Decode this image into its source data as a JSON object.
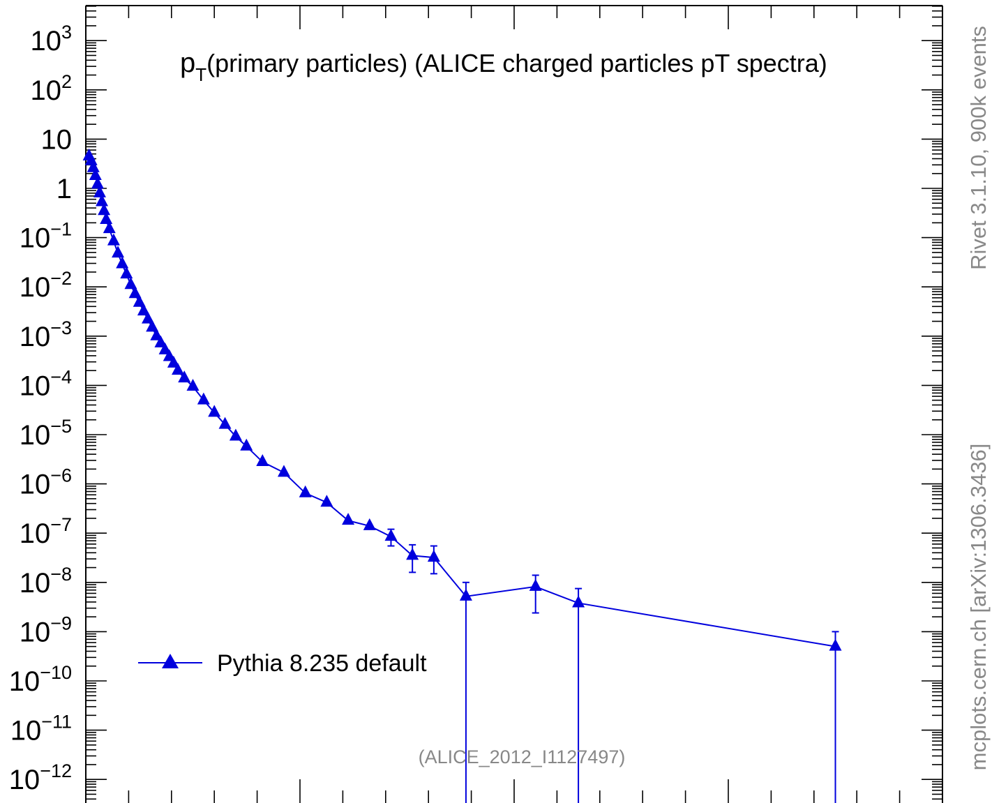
{
  "chart_data": {
    "type": "scatter",
    "title_main": "p",
    "title_sub": "T",
    "title_rest": "(primary particles) (ALICE charged particles pT spectra)",
    "y_scale": "log",
    "ylim_exp": [
      -12.9,
      4.0
    ],
    "xlim": [
      0,
      40
    ],
    "y_ticks": [
      {
        "base": "10",
        "exp": "3",
        "value_exp": 3
      },
      {
        "base": "10",
        "exp": "2",
        "value_exp": 2
      },
      {
        "base": "10",
        "exp": "",
        "value_exp": 1
      },
      {
        "base": "1",
        "exp": "",
        "value_exp": 0
      },
      {
        "base": "10",
        "exp": "−1",
        "value_exp": -1
      },
      {
        "base": "10",
        "exp": "−2",
        "value_exp": -2
      },
      {
        "base": "10",
        "exp": "−3",
        "value_exp": -3
      },
      {
        "base": "10",
        "exp": "−4",
        "value_exp": -4
      },
      {
        "base": "10",
        "exp": "−5",
        "value_exp": -5
      },
      {
        "base": "10",
        "exp": "−6",
        "value_exp": -6
      },
      {
        "base": "10",
        "exp": "−7",
        "value_exp": -7
      },
      {
        "base": "10",
        "exp": "−8",
        "value_exp": -8
      },
      {
        "base": "10",
        "exp": "−9",
        "value_exp": -9
      },
      {
        "base": "10",
        "exp": "−10",
        "value_exp": -10
      },
      {
        "base": "10",
        "exp": "−11",
        "value_exp": -11
      },
      {
        "base": "10",
        "exp": "−12",
        "value_exp": -12
      }
    ],
    "series": [
      {
        "name": "Pythia 8.235 default",
        "color": "#0000dd",
        "marker": "triangle-up",
        "points": [
          {
            "x": 0.15,
            "y": 4.5
          },
          {
            "x": 0.25,
            "y": 3.6
          },
          {
            "x": 0.35,
            "y": 2.6
          },
          {
            "x": 0.45,
            "y": 1.8
          },
          {
            "x": 0.55,
            "y": 1.2
          },
          {
            "x": 0.65,
            "y": 0.8
          },
          {
            "x": 0.75,
            "y": 0.53
          },
          {
            "x": 0.85,
            "y": 0.35
          },
          {
            "x": 0.95,
            "y": 0.23
          },
          {
            "x": 1.1,
            "y": 0.15
          },
          {
            "x": 1.3,
            "y": 0.085
          },
          {
            "x": 1.5,
            "y": 0.048
          },
          {
            "x": 1.7,
            "y": 0.029
          },
          {
            "x": 1.9,
            "y": 0.018
          },
          {
            "x": 2.1,
            "y": 0.011
          },
          {
            "x": 2.3,
            "y": 0.0072
          },
          {
            "x": 2.5,
            "y": 0.0048
          },
          {
            "x": 2.7,
            "y": 0.0032
          },
          {
            "x": 2.9,
            "y": 0.0022
          },
          {
            "x": 3.1,
            "y": 0.0015
          },
          {
            "x": 3.3,
            "y": 0.001
          },
          {
            "x": 3.5,
            "y": 0.00072
          },
          {
            "x": 3.7,
            "y": 0.00052
          },
          {
            "x": 3.9,
            "y": 0.00038
          },
          {
            "x": 4.1,
            "y": 0.00028
          },
          {
            "x": 4.3,
            "y": 0.0002
          },
          {
            "x": 4.6,
            "y": 0.00014
          },
          {
            "x": 5.0,
            "y": 9.5e-05
          },
          {
            "x": 5.5,
            "y": 5e-05
          },
          {
            "x": 6.0,
            "y": 2.8e-05
          },
          {
            "x": 6.5,
            "y": 1.6e-05
          },
          {
            "x": 7.0,
            "y": 9.2e-06
          },
          {
            "x": 7.5,
            "y": 5.8e-06
          },
          {
            "x": 8.25,
            "y": 2.8e-06
          },
          {
            "x": 9.25,
            "y": 1.7e-06
          },
          {
            "x": 10.25,
            "y": 6.5e-07
          },
          {
            "x": 11.25,
            "y": 4.2e-07
          },
          {
            "x": 12.25,
            "y": 1.8e-07
          },
          {
            "x": 13.25,
            "y": 1.4e-07
          },
          {
            "x": 14.25,
            "y": 8.5e-08,
            "yerr_lo": 5.5e-08,
            "yerr_hi": 1.2e-07
          },
          {
            "x": 15.25,
            "y": 3.5e-08,
            "yerr_lo": 1.6e-08,
            "yerr_hi": 5.8e-08
          },
          {
            "x": 16.25,
            "y": 3.2e-08,
            "yerr_lo": 1.5e-08,
            "yerr_hi": 5.5e-08
          },
          {
            "x": 17.75,
            "y": 5.2e-09,
            "yerr_lo": 1e-13,
            "yerr_hi": 1e-08
          },
          {
            "x": 21.0,
            "y": 8.2e-09,
            "yerr_lo": 2.4e-09,
            "yerr_hi": 1.4e-08
          },
          {
            "x": 23.0,
            "y": 3.8e-09,
            "yerr_lo": 1e-13,
            "yerr_hi": 7.5e-09
          },
          {
            "x": 35.0,
            "y": 5e-10,
            "yerr_lo": 1e-13,
            "yerr_hi": 1e-09
          }
        ]
      }
    ],
    "legend_position": "middle-left",
    "analysis_tag": "(ALICE_2012_I1127497)",
    "side_label_top": "Rivet 3.1.10,  900k events",
    "side_label_bottom": "mcplots.cern.ch [arXiv:1306.3436]"
  }
}
